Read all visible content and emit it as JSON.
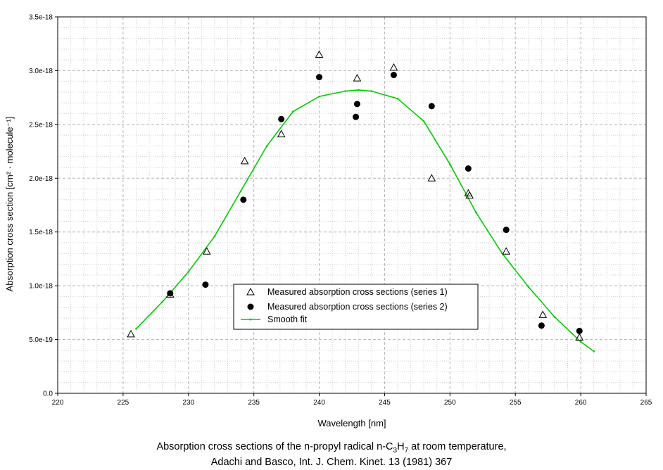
{
  "chart_data": {
    "type": "scatter",
    "xlabel": "Wavelength [nm]",
    "ylabel": "Absorption cross section [cm² · molecule⁻¹]",
    "xlim": [
      220,
      265
    ],
    "ylim": [
      0,
      3.5e-18
    ],
    "x_ticks": [
      "220",
      "225",
      "230",
      "235",
      "240",
      "245",
      "250",
      "255",
      "260",
      "265"
    ],
    "y_ticks": [
      "0.0",
      "5.0e-19",
      "1.0e-18",
      "1.5e-18",
      "2.0e-18",
      "2.5e-18",
      "3.0e-18",
      "3.5e-18"
    ],
    "grid": true,
    "legend_position": "lower-center",
    "series": [
      {
        "name": "Measured absorption cross sections (series 1)",
        "marker": "open-triangle",
        "color": "#000000",
        "x": [
          225.6,
          228.6,
          231.4,
          234.3,
          237.1,
          240.0,
          242.9,
          245.7,
          248.6,
          251.4,
          251.5,
          254.3,
          257.1,
          259.9
        ],
        "y": [
          5.5e-19,
          9.2e-19,
          1.32e-18,
          2.16e-18,
          2.41e-18,
          3.15e-18,
          2.93e-18,
          3.03e-18,
          2e-18,
          1.86e-18,
          1.84e-18,
          1.32e-18,
          7.3e-19,
          5.2e-19
        ]
      },
      {
        "name": "Measured absorption cross sections (series 2)",
        "marker": "filled-circle",
        "color": "#000000",
        "x": [
          228.6,
          231.3,
          234.2,
          237.1,
          240.0,
          242.8,
          242.9,
          245.7,
          248.6,
          251.4,
          254.3,
          257.0,
          259.9
        ],
        "y": [
          9.3e-19,
          1.01e-18,
          1.8e-18,
          2.55e-18,
          2.94e-18,
          2.57e-18,
          2.69e-18,
          2.96e-18,
          2.67e-18,
          2.09e-18,
          1.52e-18,
          6.3e-19,
          5.8e-19
        ]
      },
      {
        "name": "Smooth fit",
        "marker": "line",
        "color": "#00cc00",
        "x": [
          226,
          228,
          230,
          232,
          234,
          236,
          238,
          240,
          242,
          243,
          244,
          246,
          248,
          250,
          252,
          254,
          256,
          258,
          260,
          261
        ],
        "y": [
          6e-19,
          8.5e-19,
          1.13e-18,
          1.46e-18,
          1.88e-18,
          2.3e-18,
          2.62e-18,
          2.76e-18,
          2.81e-18,
          2.82e-18,
          2.81e-18,
          2.74e-18,
          2.53e-18,
          2.13e-18,
          1.68e-18,
          1.3e-18,
          9.9e-19,
          7.1e-19,
          4.8e-19,
          3.9e-19
        ]
      }
    ]
  },
  "caption": {
    "line1_prefix": "Absorption cross sections of the n-propyl radical n-C",
    "line1_sub1": "3",
    "line1_mid": "H",
    "line1_sub2": "7",
    "line1_suffix": " at room temperature,",
    "line2": "Adachi and Basco, Int. J. Chem. Kinet. 13 (1981) 367"
  }
}
